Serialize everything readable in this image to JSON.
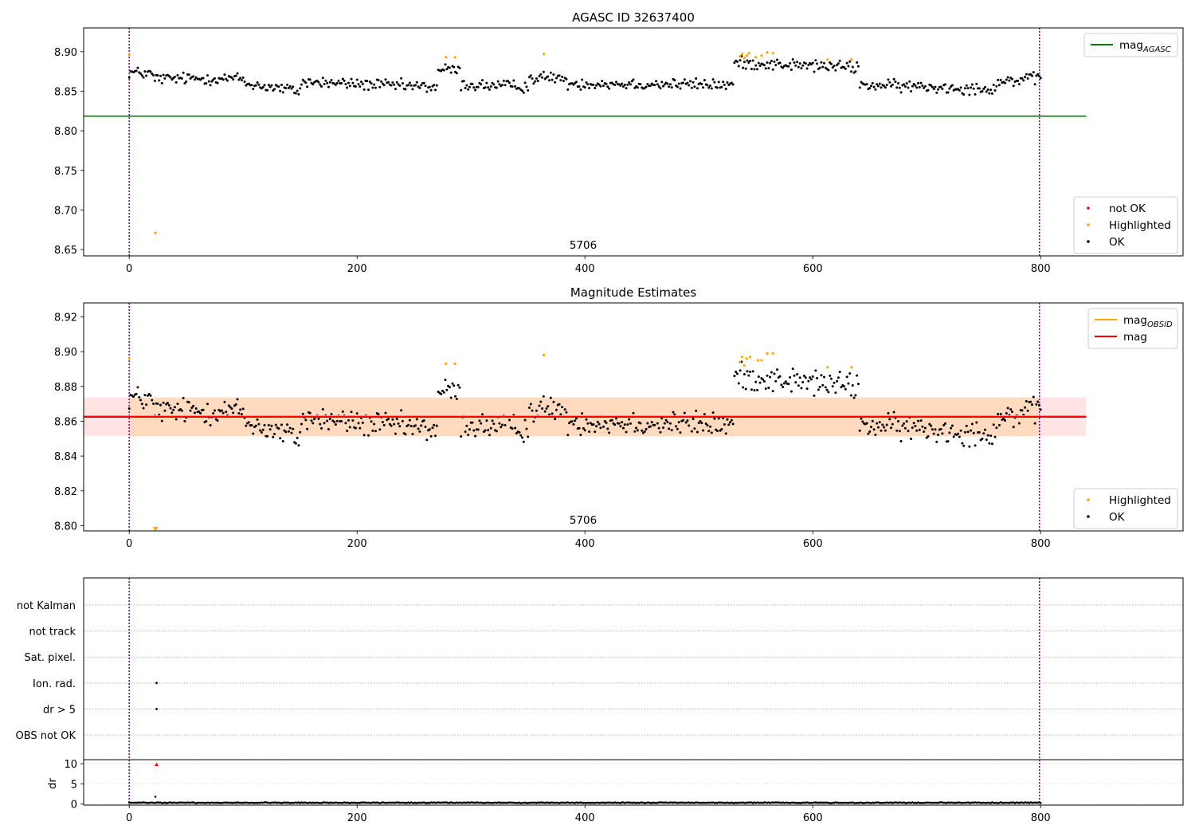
{
  "chart_data": [
    {
      "id": "agasc",
      "type": "scatter",
      "title": "AGASC ID 32637400",
      "xlim": [
        -40,
        925
      ],
      "ylim": [
        8.642,
        8.93
      ],
      "xticks": [
        0,
        200,
        400,
        600,
        800
      ],
      "yticks": [
        8.65,
        8.7,
        8.75,
        8.8,
        8.85,
        8.9
      ],
      "xticklabels": [
        "0",
        "200",
        "400",
        "600",
        "800"
      ],
      "yticklabels": [
        "8.65",
        "8.70",
        "8.75",
        "8.80",
        "8.85",
        "8.90"
      ],
      "vlines": [
        0,
        799
      ],
      "hlines": [
        {
          "name": "mag_AGASC",
          "y": 8.8185,
          "xmin": -40,
          "xmax": 840,
          "color": "#008000"
        }
      ],
      "annotations": [
        {
          "text": "5706",
          "x": 400,
          "y": 8.648
        }
      ],
      "legends": [
        {
          "position": "top-right",
          "items": [
            {
              "kind": "line",
              "label": "mag",
              "sub": "AGASC",
              "color": "#008000"
            }
          ]
        },
        {
          "position": "bottom-right",
          "items": [
            {
              "kind": "dot",
              "label": "not OK",
              "color": "#ff0000"
            },
            {
              "kind": "dot",
              "label": "Highlighted",
              "color": "#ffa500"
            },
            {
              "kind": "dot",
              "label": "OK",
              "color": "#000000"
            }
          ]
        }
      ],
      "colors": {
        "ok": "#000000",
        "highlighted": "#ffa500",
        "not_ok": "#ff0000"
      },
      "series": [
        {
          "name": "Highlighted",
          "points": [
            [
              0,
              8.896
            ],
            [
              23,
              8.671
            ],
            [
              278,
              8.893
            ],
            [
              286,
              8.893
            ],
            [
              364,
              8.897
            ],
            [
              536,
              8.894
            ],
            [
              538,
              8.897
            ],
            [
              540,
              8.892
            ],
            [
              542,
              8.895
            ],
            [
              544,
              8.898
            ],
            [
              550,
              8.893
            ],
            [
              555,
              8.895
            ],
            [
              560,
              8.899
            ],
            [
              565,
              8.898
            ],
            [
              613,
              8.89
            ],
            [
              634,
              8.89
            ]
          ]
        },
        {
          "name": "OK",
          "profile": {
            "x_start": 0,
            "x_end": 800,
            "step": 1.25,
            "spread": 0.011,
            "segments": [
              [
                0,
                20,
                8.874,
                8.872
              ],
              [
                20,
                100,
                8.866,
                8.866
              ],
              [
                100,
                150,
                8.86,
                8.85
              ],
              [
                150,
                270,
                8.862,
                8.855
              ],
              [
                270,
                290,
                8.878,
                8.876
              ],
              [
                290,
                350,
                8.858,
                8.856
              ],
              [
                350,
                380,
                8.866,
                8.868
              ],
              [
                380,
                530,
                8.86,
                8.858
              ],
              [
                530,
                640,
                8.886,
                8.88
              ],
              [
                640,
                760,
                8.858,
                8.853
              ],
              [
                760,
                800,
                8.862,
                8.866
              ]
            ]
          }
        }
      ]
    },
    {
      "id": "mag-estimates",
      "type": "scatter",
      "title": "Magnitude Estimates",
      "xlim": [
        -40,
        925
      ],
      "ylim": [
        8.797,
        8.928
      ],
      "xticks": [
        0,
        200,
        400,
        600,
        800
      ],
      "yticks": [
        8.8,
        8.82,
        8.84,
        8.86,
        8.88,
        8.9,
        8.92
      ],
      "xticklabels": [
        "0",
        "200",
        "400",
        "600",
        "800"
      ],
      "yticklabels": [
        "8.80",
        "8.82",
        "8.84",
        "8.86",
        "8.88",
        "8.90",
        "8.92"
      ],
      "vlines": [
        0,
        799
      ],
      "hlines": [
        {
          "name": "mag_OBSID",
          "y": 8.8625,
          "xmin": -40,
          "xmax": 840,
          "color": "#ffa500"
        },
        {
          "name": "mag",
          "y": 8.8625,
          "xmin": -40,
          "xmax": 840,
          "color": "#ff0000"
        }
      ],
      "bands": [
        {
          "color": "#ff6b6b",
          "opacity": 0.18,
          "y": [
            8.8514,
            8.8737
          ],
          "xmin": -40,
          "xmax": 840
        },
        {
          "color": "#ffa500",
          "opacity": 0.16,
          "y": [
            8.8514,
            8.8737
          ],
          "xmin": 0,
          "xmax": 799
        }
      ],
      "annotations": [
        {
          "text": "5706",
          "x": 400,
          "y": 8.801
        }
      ],
      "legends": [
        {
          "position": "top-right",
          "items": [
            {
              "kind": "line",
              "label": "mag",
              "sub": "OBSID",
              "color": "#ffa500"
            },
            {
              "kind": "line",
              "label": "mag",
              "color": "#ff0000"
            }
          ]
        },
        {
          "position": "bottom-right",
          "items": [
            {
              "kind": "dot",
              "label": "Highlighted",
              "color": "#ffa500"
            },
            {
              "kind": "dot",
              "label": "OK",
              "color": "#000000"
            }
          ]
        }
      ],
      "colors": {
        "ok": "#000000",
        "highlighted": "#ffa500",
        "not_ok": "#ff0000"
      },
      "series": [
        {
          "name": "Highlighted",
          "points": [
            [
              0,
              8.896
            ],
            [
              278,
              8.893
            ],
            [
              286,
              8.893
            ],
            [
              364,
              8.898
            ],
            [
              536,
              8.894
            ],
            [
              538,
              8.897
            ],
            [
              540,
              8.892
            ],
            [
              542,
              8.896
            ],
            [
              545,
              8.897
            ],
            [
              552,
              8.895
            ],
            [
              555,
              8.895
            ],
            [
              560,
              8.899
            ],
            [
              565,
              8.899
            ],
            [
              613,
              8.891
            ],
            [
              634,
              8.891
            ]
          ],
          "outliers": [
            [
              23,
              8.798
            ]
          ]
        },
        {
          "name": "OK",
          "profile": {
            "x_start": 0,
            "x_end": 800,
            "step": 1.25,
            "spread": 0.011,
            "segments": [
              [
                0,
                20,
                8.874,
                8.872
              ],
              [
                20,
                100,
                8.866,
                8.866
              ],
              [
                100,
                150,
                8.86,
                8.85
              ],
              [
                150,
                270,
                8.862,
                8.855
              ],
              [
                270,
                290,
                8.878,
                8.876
              ],
              [
                290,
                350,
                8.858,
                8.856
              ],
              [
                350,
                380,
                8.866,
                8.868
              ],
              [
                380,
                530,
                8.86,
                8.858
              ],
              [
                530,
                640,
                8.886,
                8.88
              ],
              [
                640,
                760,
                8.858,
                8.853
              ],
              [
                760,
                800,
                8.862,
                8.866
              ]
            ]
          }
        }
      ]
    },
    {
      "id": "flags",
      "type": "scatter",
      "xlim": [
        -40,
        925
      ],
      "categories": [
        "not Kalman",
        "not track",
        "Sat. pixel.",
        "Ion. rad.",
        "dr > 5",
        "OBS not OK"
      ],
      "vlines": [
        0,
        799
      ],
      "points": [
        {
          "category": "Ion. rad.",
          "x": 24
        },
        {
          "category": "dr > 5",
          "x": 24
        }
      ]
    },
    {
      "id": "dr",
      "type": "scatter",
      "xlim": [
        -40,
        925
      ],
      "ylim": [
        -0.3,
        11
      ],
      "ylabel": "dr",
      "xticks": [
        0,
        200,
        400,
        600,
        800
      ],
      "yticks": [
        0,
        5,
        10
      ],
      "xticklabels": [
        "0",
        "200",
        "400",
        "600",
        "800"
      ],
      "yticklabels": [
        "0",
        "5",
        "10"
      ],
      "vlines": [
        0,
        799
      ],
      "outliers": [
        [
          24,
          9.8
        ]
      ],
      "outlier_color": "#ff0000",
      "series": [
        {
          "name": "OK",
          "points": [
            [
              23,
              1.8
            ]
          ],
          "profile": {
            "x_start": 0,
            "x_end": 800,
            "step": 1.25,
            "spread": 0.15,
            "segments": [
              [
                0,
                800,
                0.3,
                0.3
              ]
            ]
          }
        }
      ]
    }
  ]
}
